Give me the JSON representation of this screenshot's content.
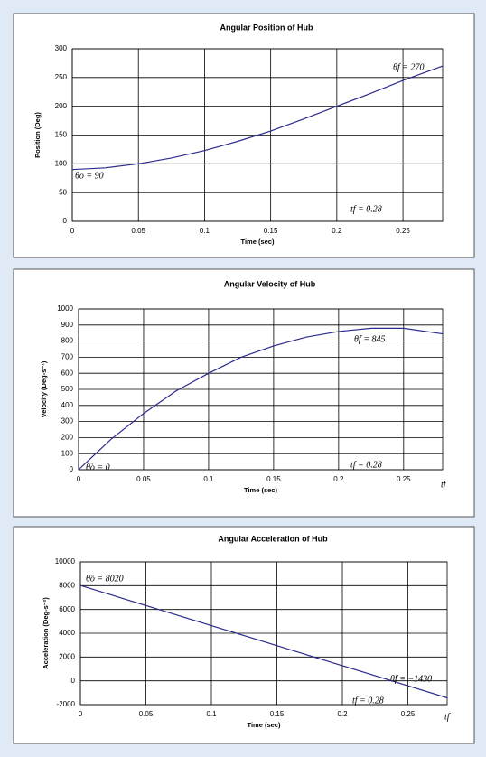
{
  "chart_data": [
    {
      "type": "line",
      "title": "Angular Position of Hub",
      "xlabel": "Time (sec)",
      "ylabel": "Position (Deg)",
      "x": [
        0,
        0.025,
        0.05,
        0.075,
        0.1,
        0.125,
        0.15,
        0.175,
        0.2,
        0.225,
        0.25,
        0.28
      ],
      "values": [
        90,
        93,
        100,
        110,
        123,
        139,
        157,
        178,
        200,
        222,
        245,
        270
      ],
      "color": "#2b2b8c",
      "xlim": [
        0,
        0.28
      ],
      "xticks": [
        0,
        0.05,
        0.1,
        0.15,
        0.2,
        0.25
      ],
      "ylim": [
        0,
        300
      ],
      "yticks": [
        0,
        50,
        100,
        150,
        200,
        250,
        300
      ],
      "grid": true,
      "annotations": [
        "θo = 90",
        "θf = 270",
        "tf = 0.28"
      ]
    },
    {
      "type": "line",
      "title": "Angular Velocity of Hub",
      "xlabel": "Time (sec)",
      "ylabel": "Velocity (Deg-s⁻¹)",
      "x": [
        0,
        0.025,
        0.05,
        0.075,
        0.1,
        0.125,
        0.15,
        0.175,
        0.2,
        0.225,
        0.25,
        0.28
      ],
      "values": [
        0,
        190,
        350,
        490,
        600,
        700,
        770,
        825,
        860,
        880,
        880,
        845
      ],
      "color": "#2b2b8c",
      "xlim": [
        0,
        0.28
      ],
      "xticks": [
        0,
        0.05,
        0.1,
        0.15,
        0.2,
        0.25
      ],
      "ylim": [
        0,
        1000
      ],
      "yticks": [
        0,
        100,
        200,
        300,
        400,
        500,
        600,
        700,
        800,
        900,
        1000
      ],
      "grid": true,
      "annotations": [
        "θ̇o = 0",
        "θ̇f = 845",
        "tf = 0.28",
        "tf"
      ]
    },
    {
      "type": "line",
      "title": "Angular Acceleration of Hub",
      "xlabel": "Time (sec)",
      "ylabel": "Acceleration (Deg-s⁻²)",
      "x": [
        0,
        0.28
      ],
      "values": [
        8020,
        -1430
      ],
      "color": "#2b2b8c",
      "xlim": [
        0,
        0.28
      ],
      "xticks": [
        0,
        0.05,
        0.1,
        0.15,
        0.2,
        0.25
      ],
      "ylim": [
        -2000,
        10000
      ],
      "yticks": [
        -2000,
        0,
        2000,
        4000,
        6000,
        8000,
        10000
      ],
      "grid": true,
      "annotations": [
        "θ̈o = 8020",
        "θ̈f = −1430",
        "tf = 0.28",
        "tf"
      ]
    }
  ]
}
